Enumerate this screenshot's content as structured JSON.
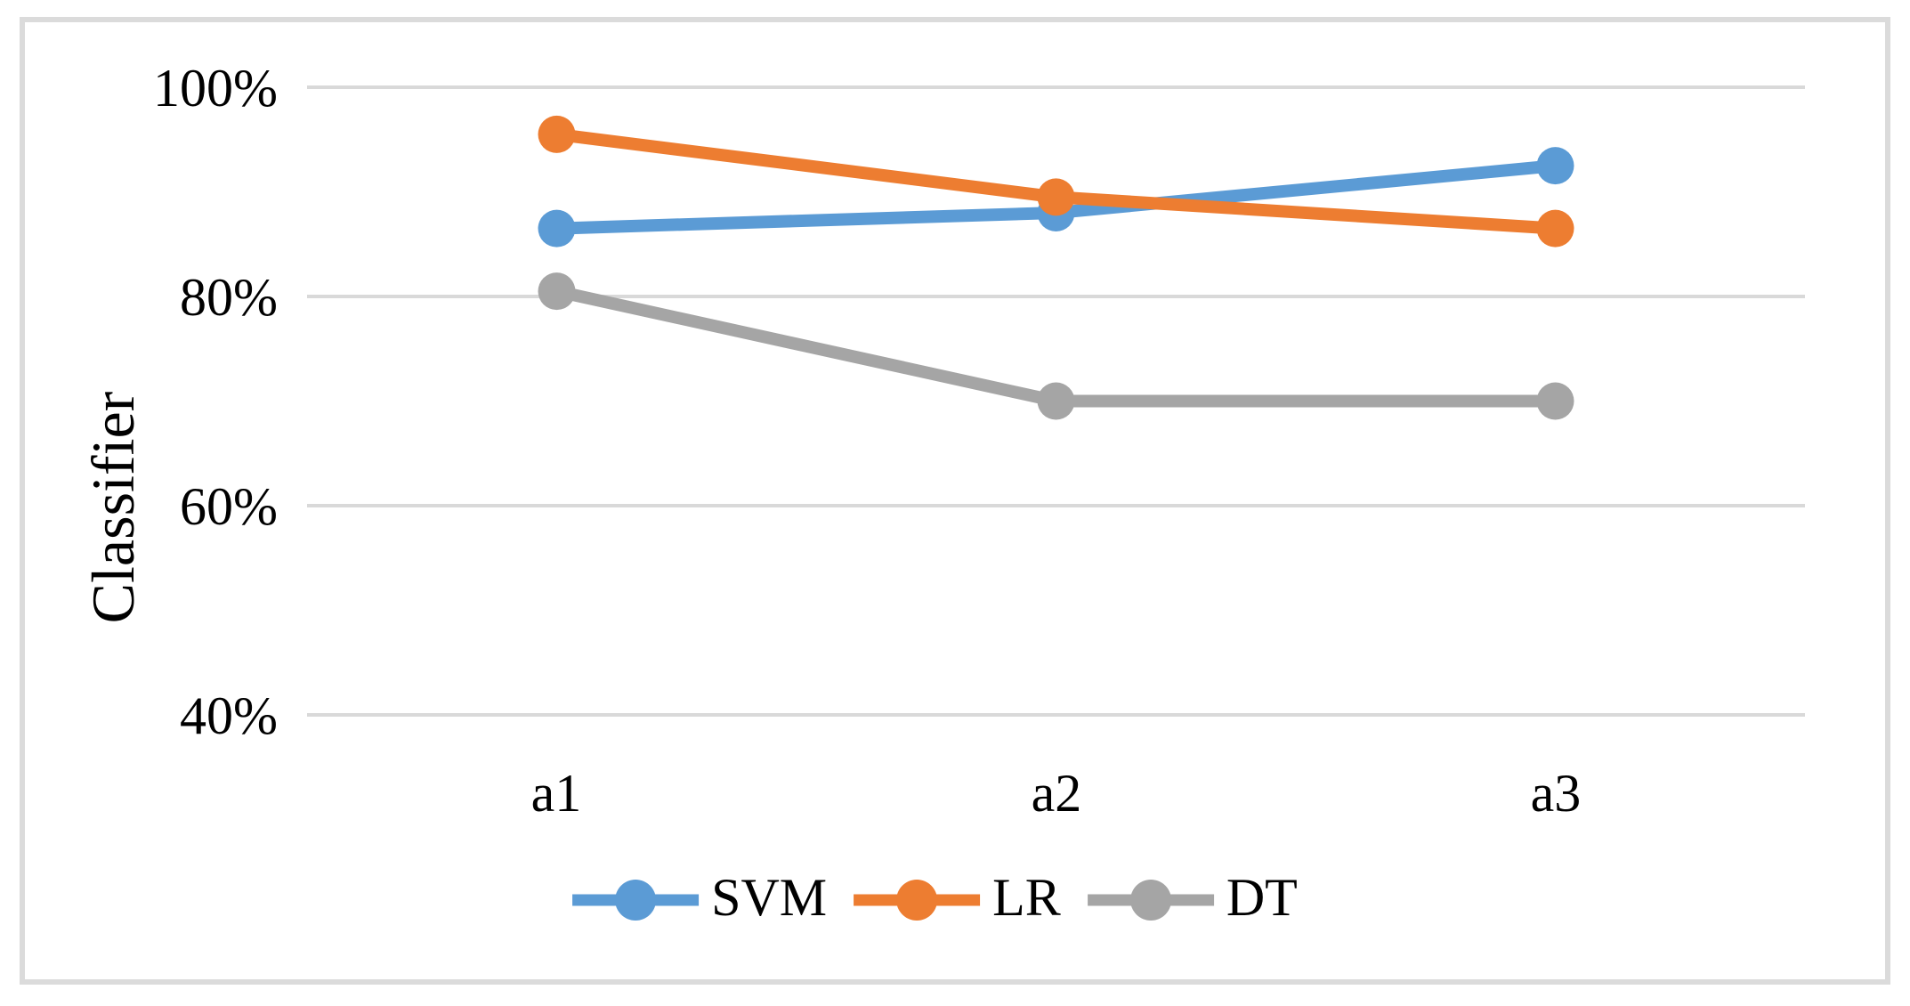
{
  "chart_data": {
    "type": "line",
    "title": "",
    "ylabel": "Classifier",
    "xlabel": "",
    "categories": [
      "a1",
      "a2",
      "a3"
    ],
    "series": [
      {
        "name": "SVM",
        "color": "#5B9BD5",
        "values": [
          86.5,
          88.0,
          92.5
        ]
      },
      {
        "name": "LR",
        "color": "#ED7D31",
        "values": [
          95.5,
          89.5,
          86.5
        ]
      },
      {
        "name": "DT",
        "color": "#A5A5A5",
        "values": [
          80.5,
          70.0,
          70.0
        ]
      }
    ],
    "y_ticks": [
      {
        "label": "100%",
        "value": 100
      },
      {
        "label": "80%",
        "value": 80
      },
      {
        "label": "60%",
        "value": 60
      },
      {
        "label": "40%",
        "value": 40
      }
    ],
    "ylim": [
      40,
      100
    ],
    "unit": "percent",
    "grid": true,
    "legend_position": "bottom"
  },
  "colors": {
    "gridline": "#D9D9D9",
    "frame": "#DBDBDB",
    "text": "#000000",
    "background": "#FFFFFF"
  }
}
